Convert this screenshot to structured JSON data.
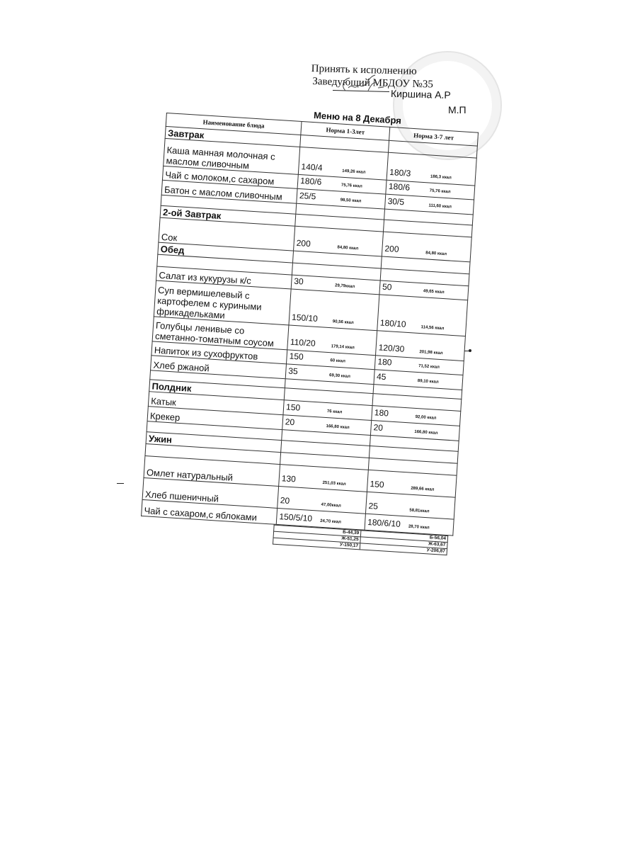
{
  "approval": {
    "line1": "Принять к исполнению",
    "line2": "Заведующий МБДОУ №35",
    "signer": "Киршина А.Р",
    "seal_label": "М.П"
  },
  "menu": {
    "title": "Меню на    8 Декабря",
    "headers": [
      "Наименование блюда",
      "Норма 1-3лет",
      "Норма 3-7 лет"
    ],
    "rows": [
      {
        "type": "section",
        "name": "Завтрак"
      },
      {
        "type": "item",
        "name": "Каша манная молочная с маслом сливочным",
        "p1": "140/4",
        "k1": "149,26 ккал",
        "p2": "180/3",
        "k2": "186,3 ккал",
        "h": 38
      },
      {
        "type": "item",
        "name": "Чай с молоком,с сахаром",
        "p1": "180/6",
        "k1": "75,76 ккал",
        "p2": "180/6",
        "k2": "75,76 ккал"
      },
      {
        "type": "item",
        "name": "Батон с   маслом сливочным",
        "p1": "25/5",
        "k1": "98,50 ккал",
        "p2": "30/5",
        "k2": "111,60 ккал",
        "h": 20
      },
      {
        "type": "blank"
      },
      {
        "type": "section",
        "name": "2-ой Завтрак"
      },
      {
        "type": "item",
        "name": "Сок",
        "p1": "200",
        "k1": "84,80 ккал",
        "p2": "200",
        "k2": "84,80 ккал",
        "h": 34
      },
      {
        "type": "section",
        "name": "Обед"
      },
      {
        "type": "blank",
        "h": 16
      },
      {
        "type": "item",
        "name": "Салат из кукурузы к/с",
        "p1": "30",
        "k1": "29,79ккал",
        "p2": "50",
        "k2": "49,65 ккал"
      },
      {
        "type": "item",
        "name": "Суп вермишелевый с картофелем с куриными фрикадельками",
        "p1": "150/10",
        "k1": "90,56 ккал",
        "p2": "180/10",
        "k2": "114,56 ккал",
        "h": 50
      },
      {
        "type": "item",
        "name": "Голубцы ленивые со сметанно-томатным соусом",
        "p1": "110/20",
        "k1": "179,14 ккал",
        "p2": "120/30",
        "k2": "201,98 ккал",
        "h": 34
      },
      {
        "type": "item",
        "name": "Напиток из сухофруктов",
        "p1": "150",
        "k1": "60 ккал",
        "p2": "180",
        "k2": "71,52 ккал"
      },
      {
        "type": "item",
        "name": "Хлеб ржаной",
        "p1": "35",
        "k1": "69,30 ккал",
        "p2": "45",
        "k2": "89,10 ккал",
        "h": 20
      },
      {
        "type": "blank",
        "h": 12
      },
      {
        "type": "section",
        "name": "Полдник"
      },
      {
        "type": "item",
        "name": "Катык",
        "p1": "150",
        "k1": "76 ккал",
        "p2": "180",
        "k2": "92,00 ккал",
        "h": 20
      },
      {
        "type": "item",
        "name": "Крекер",
        "p1": "20",
        "k1": "166,80 ккал",
        "p2": "20",
        "k2": "166,80 ккал",
        "h": 20
      },
      {
        "type": "blank",
        "h": 14
      },
      {
        "type": "section",
        "name": "Ужин"
      },
      {
        "type": "blank",
        "h": 16
      },
      {
        "type": "item",
        "name": "Омлет натуральный",
        "p1": "130",
        "k1": "251,03 ккал",
        "p2": "150",
        "k2": "289,66 ккал",
        "h": 30
      },
      {
        "type": "item",
        "name": "Хлеб пшеничный",
        "p1": "20",
        "k1": "47,00ккал",
        "p2": "25",
        "k2": "58,81ккал",
        "h": 30
      },
      {
        "type": "item",
        "name": "Чай с сахаром,с яблоками",
        "p1": "150/5/10",
        "k1": "24,70 ккал",
        "p2": "180/6/10",
        "k2": "28,70 ккал",
        "h": 22
      }
    ],
    "totals": [
      {
        "n1": "Б-44,39",
        "n2": "Б-56,04"
      },
      {
        "n1": "Ж-51,25",
        "n2": "Ж-63,67"
      },
      {
        "n1": "У-150,17",
        "n2": "У-206,87"
      }
    ]
  }
}
